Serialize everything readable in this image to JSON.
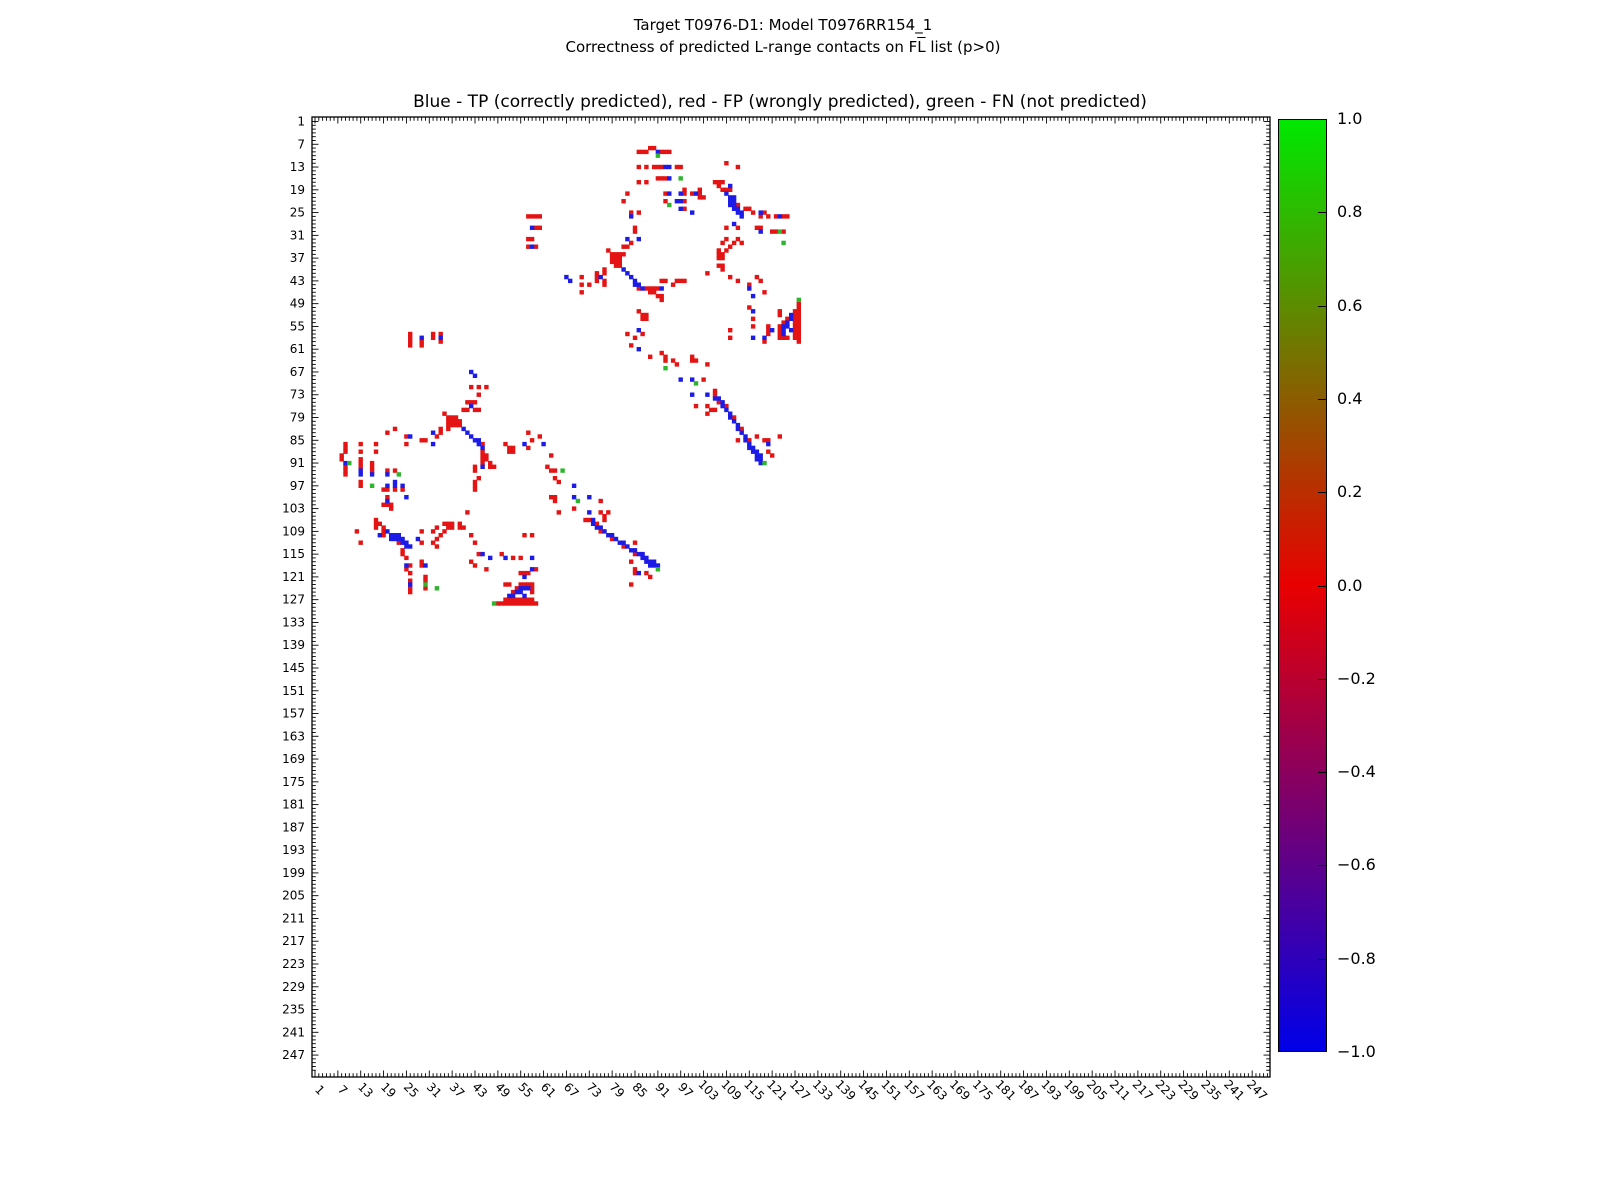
{
  "suptitle": {
    "line1": "Target T0976-D1: Model T0976RR154_1",
    "line2_prefix": "Correctness of predicted L-range contacts on F",
    "line2_overline": "L",
    "line2_suffix": " list (p>0)"
  },
  "axes_title": "Blue - TP (correctly predicted), red - FP (wrongly predicted), green - FN (not predicted)",
  "colorbar": {
    "tick_labels": [
      "1.0",
      "0.8",
      "0.6",
      "0.4",
      "0.2",
      "0.0",
      "−0.2",
      "−0.4",
      "−0.6",
      "−0.8",
      "−1.0"
    ],
    "top_color": "#00e800",
    "mid_color": "#e80000",
    "bottom_color": "#0000e8"
  },
  "chart_data": {
    "type": "heatmap",
    "subtype": "symmetric residue contact map",
    "xlabel": "",
    "ylabel": "",
    "x_range": [
      1,
      251
    ],
    "y_range": [
      1,
      251
    ],
    "tick_step": 6,
    "tick_labels": [
      "1",
      "7",
      "13",
      "19",
      "25",
      "31",
      "37",
      "43",
      "49",
      "55",
      "61",
      "67",
      "73",
      "79",
      "85",
      "91",
      "97",
      "103",
      "109",
      "115",
      "121",
      "127",
      "133",
      "139",
      "145",
      "151",
      "157",
      "163",
      "169",
      "175",
      "181",
      "187",
      "193",
      "199",
      "205",
      "211",
      "217",
      "223",
      "229",
      "235",
      "241",
      "247"
    ],
    "grid": false,
    "symmetric": true,
    "legend": {
      "TP": "blue",
      "FP": "red",
      "FN": "green"
    },
    "colors": {
      "R": "#e41414",
      "B": "#1c1ce6",
      "G": "#2db52d"
    },
    "cells": [
      [
        26,
        57,
        "R"
      ],
      [
        26,
        58,
        "R"
      ],
      [
        26,
        59,
        "R"
      ],
      [
        26,
        60,
        "R"
      ],
      [
        29,
        58,
        "B"
      ],
      [
        29,
        59,
        "R"
      ],
      [
        29,
        60,
        "R"
      ],
      [
        32,
        57,
        "R"
      ],
      [
        32,
        58,
        "R"
      ],
      [
        34,
        57,
        "R"
      ],
      [
        34,
        58,
        "B"
      ],
      [
        34,
        59,
        "R"
      ],
      [
        43,
        68,
        "B"
      ],
      [
        44,
        71,
        "R"
      ],
      [
        46,
        71,
        "R"
      ],
      [
        42,
        75,
        "R"
      ],
      [
        43,
        75,
        "R"
      ],
      [
        42,
        76,
        "B"
      ],
      [
        40,
        77,
        "R"
      ],
      [
        41,
        77,
        "R"
      ],
      [
        43,
        77,
        "R"
      ],
      [
        44,
        77,
        "R"
      ],
      [
        35,
        78,
        "R"
      ],
      [
        36,
        79,
        "R"
      ],
      [
        37,
        79,
        "R"
      ],
      [
        38,
        79,
        "R"
      ],
      [
        36,
        80,
        "R"
      ],
      [
        37,
        80,
        "R"
      ],
      [
        38,
        80,
        "R"
      ],
      [
        39,
        80,
        "R"
      ],
      [
        36,
        81,
        "R"
      ],
      [
        37,
        81,
        "R"
      ],
      [
        38,
        81,
        "R"
      ],
      [
        39,
        81,
        "R"
      ],
      [
        36,
        82,
        "R"
      ],
      [
        40,
        82,
        "B"
      ],
      [
        41,
        83,
        "B"
      ],
      [
        42,
        84,
        "B"
      ],
      [
        43,
        85,
        "B"
      ],
      [
        44,
        85,
        "B"
      ],
      [
        44,
        86,
        "B"
      ],
      [
        45,
        87,
        "B"
      ],
      [
        45,
        88,
        "R"
      ],
      [
        46,
        89,
        "R"
      ],
      [
        46,
        90,
        "R"
      ],
      [
        47,
        91,
        "R"
      ],
      [
        47,
        92,
        "R"
      ],
      [
        48,
        92,
        "R"
      ],
      [
        9,
        86,
        "R"
      ],
      [
        9,
        87,
        "R"
      ],
      [
        9,
        88,
        "R"
      ],
      [
        8,
        89,
        "R"
      ],
      [
        8,
        90,
        "R"
      ],
      [
        9,
        91,
        "B"
      ],
      [
        9,
        92,
        "R"
      ],
      [
        9,
        93,
        "R"
      ],
      [
        9,
        94,
        "R"
      ],
      [
        10,
        91,
        "G"
      ],
      [
        13,
        86,
        "R"
      ],
      [
        13,
        88,
        "R"
      ],
      [
        13,
        90,
        "R"
      ],
      [
        13,
        91,
        "R"
      ],
      [
        13,
        92,
        "R"
      ],
      [
        13,
        93,
        "B"
      ],
      [
        13,
        94,
        "B"
      ],
      [
        13,
        96,
        "R"
      ],
      [
        13,
        97,
        "R"
      ],
      [
        16,
        91,
        "R"
      ],
      [
        16,
        92,
        "R"
      ],
      [
        16,
        93,
        "R"
      ],
      [
        16,
        94,
        "B"
      ],
      [
        16,
        97,
        "G"
      ],
      [
        17,
        86,
        "R"
      ],
      [
        17,
        88,
        "R"
      ],
      [
        20,
        83,
        "R"
      ],
      [
        20,
        93,
        "R"
      ],
      [
        20,
        94,
        "B"
      ],
      [
        20,
        97,
        "B"
      ],
      [
        20,
        98,
        "R"
      ],
      [
        19,
        98,
        "R"
      ],
      [
        20,
        100,
        "R"
      ],
      [
        20,
        101,
        "B"
      ],
      [
        19,
        102,
        "R"
      ],
      [
        20,
        102,
        "R"
      ],
      [
        21,
        102,
        "R"
      ],
      [
        21,
        103,
        "R"
      ],
      [
        22,
        82,
        "R"
      ],
      [
        22,
        93,
        "R"
      ],
      [
        22,
        96,
        "B"
      ],
      [
        22,
        97,
        "B"
      ],
      [
        22,
        98,
        "R"
      ],
      [
        23,
        94,
        "G"
      ],
      [
        25,
        84,
        "R"
      ],
      [
        25,
        86,
        "R"
      ],
      [
        24,
        97,
        "B"
      ],
      [
        24,
        98,
        "R"
      ],
      [
        25,
        100,
        "B"
      ],
      [
        26,
        84,
        "B"
      ],
      [
        29,
        85,
        "R"
      ],
      [
        30,
        85,
        "R"
      ],
      [
        32,
        83,
        "B"
      ],
      [
        32,
        86,
        "B"
      ],
      [
        34,
        82,
        "R"
      ],
      [
        34,
        83,
        "R"
      ],
      [
        33,
        84,
        "R"
      ],
      [
        12,
        109,
        "R"
      ],
      [
        13,
        112,
        "R"
      ],
      [
        17,
        106,
        "R"
      ],
      [
        17,
        107,
        "R"
      ],
      [
        17,
        108,
        "R"
      ],
      [
        18,
        107,
        "R"
      ],
      [
        18,
        110,
        "B"
      ],
      [
        19,
        108,
        "R"
      ],
      [
        19,
        109,
        "R"
      ],
      [
        19,
        110,
        "R"
      ],
      [
        20,
        109,
        "B"
      ],
      [
        21,
        110,
        "B"
      ],
      [
        21,
        111,
        "B"
      ],
      [
        22,
        110,
        "B"
      ],
      [
        22,
        111,
        "B"
      ],
      [
        23,
        110,
        "B"
      ],
      [
        23,
        111,
        "B"
      ],
      [
        23,
        112,
        "R"
      ],
      [
        24,
        111,
        "B"
      ],
      [
        24,
        112,
        "B"
      ],
      [
        24,
        114,
        "R"
      ],
      [
        24,
        115,
        "R"
      ],
      [
        25,
        112,
        "B"
      ],
      [
        25,
        113,
        "B"
      ],
      [
        25,
        116,
        "R"
      ],
      [
        25,
        118,
        "B"
      ],
      [
        25,
        119,
        "R"
      ],
      [
        26,
        113,
        "B"
      ],
      [
        26,
        118,
        "R"
      ],
      [
        26,
        120,
        "R"
      ],
      [
        26,
        122,
        "R"
      ],
      [
        26,
        123,
        "B"
      ],
      [
        26,
        124,
        "R"
      ],
      [
        26,
        125,
        "R"
      ],
      [
        28,
        111,
        "B"
      ],
      [
        29,
        109,
        "R"
      ],
      [
        29,
        112,
        "R"
      ],
      [
        29,
        117,
        "R"
      ],
      [
        29,
        118,
        "R"
      ],
      [
        30,
        118,
        "B"
      ],
      [
        30,
        121,
        "R"
      ],
      [
        30,
        122,
        "R"
      ],
      [
        30,
        123,
        "G"
      ],
      [
        30,
        124,
        "R"
      ],
      [
        32,
        109,
        "R"
      ],
      [
        32,
        112,
        "R"
      ],
      [
        33,
        124,
        "G"
      ],
      [
        33,
        113,
        "R"
      ],
      [
        33,
        108,
        "R"
      ],
      [
        33,
        111,
        "R"
      ],
      [
        34,
        110,
        "R"
      ],
      [
        35,
        107,
        "R"
      ],
      [
        35,
        109,
        "R"
      ],
      [
        36,
        107,
        "R"
      ],
      [
        37,
        107,
        "R"
      ],
      [
        36,
        108,
        "R"
      ],
      [
        37,
        108,
        "R"
      ],
      [
        39,
        107,
        "R"
      ],
      [
        39,
        108,
        "R"
      ],
      [
        40,
        108,
        "R"
      ],
      [
        41,
        104,
        "R"
      ],
      [
        42,
        110,
        "R"
      ],
      [
        43,
        112,
        "R"
      ],
      [
        44,
        115,
        "R"
      ],
      [
        45,
        115,
        "B"
      ],
      [
        42,
        117,
        "R"
      ],
      [
        43,
        118,
        "R"
      ],
      [
        42,
        67,
        "B"
      ],
      [
        42,
        71,
        "R"
      ],
      [
        44,
        73,
        "R"
      ],
      [
        41,
        75,
        "R"
      ],
      [
        45,
        86,
        "R"
      ],
      [
        45,
        89,
        "R"
      ],
      [
        45,
        90,
        "R"
      ],
      [
        45,
        91,
        "R"
      ],
      [
        45,
        92,
        "B"
      ],
      [
        43,
        92,
        "R"
      ],
      [
        43,
        93,
        "R"
      ],
      [
        44,
        95,
        "R"
      ],
      [
        43,
        96,
        "R"
      ],
      [
        43,
        97,
        "R"
      ],
      [
        43,
        98,
        "R"
      ],
      [
        63,
        89,
        "R"
      ],
      [
        62,
        92,
        "R"
      ],
      [
        63,
        93,
        "R"
      ],
      [
        64,
        93,
        "R"
      ],
      [
        66,
        93,
        "G"
      ],
      [
        64,
        95,
        "R"
      ],
      [
        65,
        96,
        "R"
      ],
      [
        69,
        97,
        "B"
      ],
      [
        63,
        100,
        "R"
      ],
      [
        64,
        100,
        "R"
      ],
      [
        64,
        101,
        "R"
      ],
      [
        69,
        100,
        "B"
      ],
      [
        70,
        101,
        "G"
      ],
      [
        73,
        100,
        "B"
      ],
      [
        76,
        101,
        "R"
      ],
      [
        65,
        104,
        "R"
      ],
      [
        69,
        103,
        "R"
      ],
      [
        73,
        104,
        "B"
      ],
      [
        76,
        104,
        "R"
      ],
      [
        78,
        104,
        "R"
      ],
      [
        74,
        106,
        "B"
      ],
      [
        77,
        105,
        "R"
      ],
      [
        77,
        106,
        "R"
      ],
      [
        72,
        106,
        "R"
      ],
      [
        73,
        106,
        "R"
      ],
      [
        74,
        107,
        "B"
      ],
      [
        75,
        107,
        "R"
      ],
      [
        75,
        108,
        "B"
      ],
      [
        76,
        108,
        "B"
      ],
      [
        76,
        109,
        "R"
      ],
      [
        77,
        109,
        "B"
      ],
      [
        78,
        110,
        "B"
      ],
      [
        79,
        110,
        "B"
      ],
      [
        79,
        111,
        "R"
      ],
      [
        80,
        111,
        "B"
      ],
      [
        81,
        112,
        "B"
      ],
      [
        82,
        112,
        "B"
      ],
      [
        82,
        113,
        "R"
      ],
      [
        83,
        113,
        "B"
      ],
      [
        84,
        114,
        "B"
      ],
      [
        85,
        114,
        "B"
      ],
      [
        85,
        115,
        "R"
      ],
      [
        86,
        115,
        "B"
      ],
      [
        87,
        115,
        "B"
      ],
      [
        87,
        116,
        "B"
      ],
      [
        88,
        116,
        "B"
      ],
      [
        88,
        117,
        "B"
      ],
      [
        89,
        117,
        "B"
      ],
      [
        89,
        118,
        "B"
      ],
      [
        90,
        117,
        "B"
      ],
      [
        90,
        118,
        "B"
      ],
      [
        91,
        118,
        "B"
      ],
      [
        91,
        119,
        "G"
      ],
      [
        85,
        119,
        "R"
      ],
      [
        88,
        120,
        "R"
      ],
      [
        89,
        121,
        "R"
      ],
      [
        85,
        112,
        "R"
      ],
      [
        84,
        117,
        "R"
      ],
      [
        85,
        120,
        "R"
      ],
      [
        86,
        120,
        "B"
      ],
      [
        84,
        123,
        "R"
      ],
      [
        51,
        116,
        "B"
      ],
      [
        53,
        116,
        "R"
      ],
      [
        55,
        116,
        "R"
      ],
      [
        58,
        116,
        "B"
      ],
      [
        50,
        115,
        "R"
      ],
      [
        55,
        120,
        "R"
      ],
      [
        56,
        120,
        "R"
      ],
      [
        57,
        120,
        "R"
      ],
      [
        58,
        119,
        "B"
      ],
      [
        59,
        119,
        "R"
      ],
      [
        46,
        119,
        "R"
      ],
      [
        47,
        116,
        "B"
      ],
      [
        56,
        110,
        "R"
      ],
      [
        58,
        110,
        "R"
      ],
      [
        51,
        86,
        "R"
      ],
      [
        52,
        87,
        "R"
      ],
      [
        53,
        87,
        "R"
      ],
      [
        52,
        88,
        "R"
      ],
      [
        53,
        88,
        "R"
      ],
      [
        56,
        86,
        "B"
      ],
      [
        58,
        85,
        "R"
      ],
      [
        60,
        84,
        "R"
      ],
      [
        61,
        86,
        "B"
      ],
      [
        57,
        83,
        "R"
      ],
      [
        57,
        87,
        "R"
      ],
      [
        56,
        121,
        "B"
      ],
      [
        51,
        123,
        "R"
      ],
      [
        52,
        123,
        "R"
      ],
      [
        55,
        123,
        "R"
      ],
      [
        56,
        123,
        "R"
      ],
      [
        57,
        123,
        "R"
      ],
      [
        58,
        123,
        "R"
      ],
      [
        54,
        124,
        "R"
      ],
      [
        55,
        124,
        "B"
      ],
      [
        56,
        124,
        "B"
      ],
      [
        57,
        124,
        "B"
      ],
      [
        58,
        124,
        "R"
      ],
      [
        53,
        125,
        "R"
      ],
      [
        54,
        125,
        "B"
      ],
      [
        55,
        125,
        "B"
      ],
      [
        58,
        125,
        "R"
      ],
      [
        52,
        126,
        "B"
      ],
      [
        53,
        126,
        "B"
      ],
      [
        56,
        126,
        "B"
      ],
      [
        51,
        127,
        "R"
      ],
      [
        52,
        127,
        "R"
      ],
      [
        53,
        127,
        "R"
      ],
      [
        54,
        127,
        "R"
      ],
      [
        55,
        127,
        "R"
      ],
      [
        56,
        127,
        "R"
      ],
      [
        57,
        127,
        "R"
      ],
      [
        58,
        127,
        "R"
      ],
      [
        48,
        128,
        "G"
      ],
      [
        49,
        128,
        "R"
      ],
      [
        50,
        128,
        "R"
      ],
      [
        51,
        128,
        "R"
      ],
      [
        52,
        128,
        "R"
      ],
      [
        53,
        128,
        "R"
      ],
      [
        54,
        128,
        "R"
      ],
      [
        55,
        128,
        "R"
      ],
      [
        56,
        128,
        "R"
      ],
      [
        57,
        128,
        "R"
      ],
      [
        58,
        128,
        "R"
      ],
      [
        59,
        128,
        "R"
      ]
    ]
  }
}
